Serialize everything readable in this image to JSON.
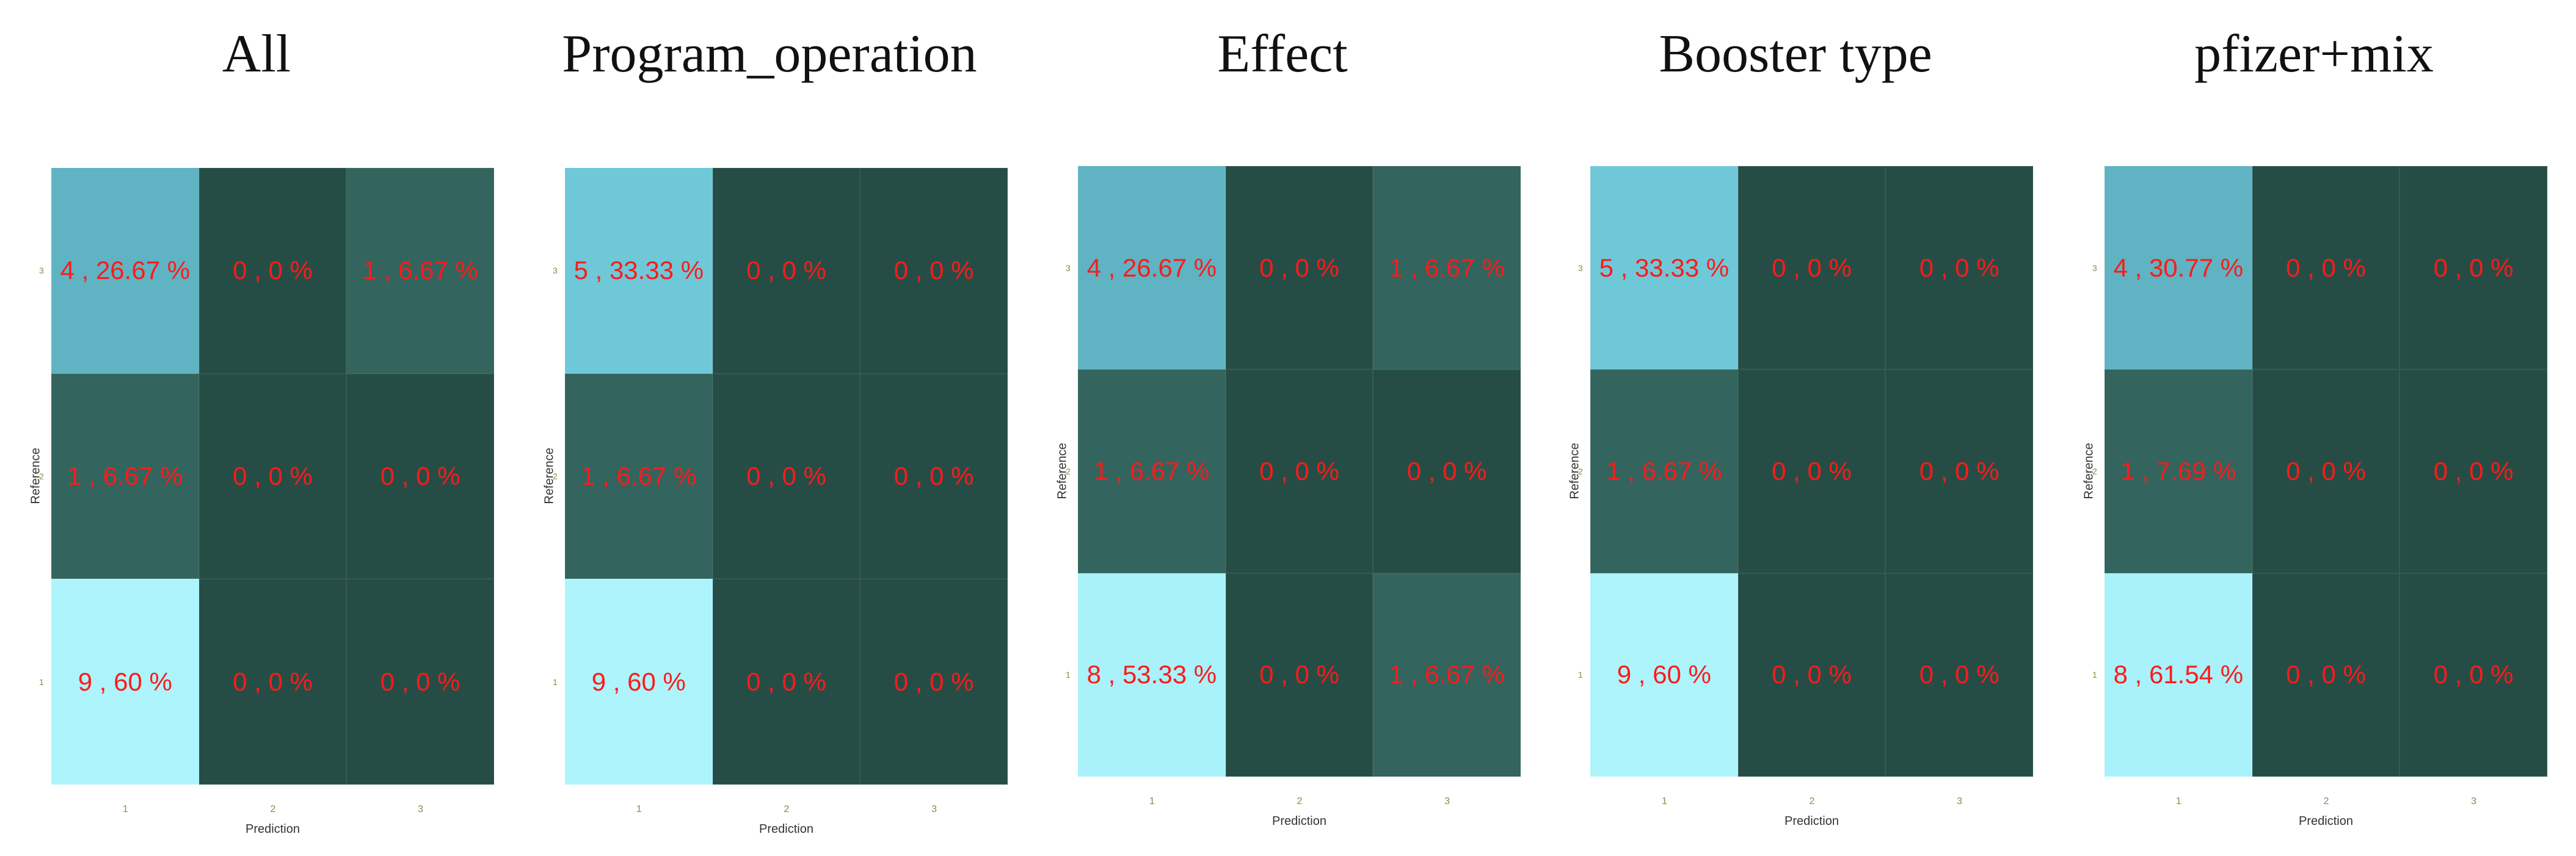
{
  "figure": {
    "type": "confusion-matrix-panels"
  },
  "colors": {
    "title_text": "#111111",
    "cell_label_text": "#ff1a1a",
    "palette": {
      "0": "#264d45",
      "1": "#33645d",
      "4_low": "#64b9c8",
      "4": "#5fb3c2",
      "5": "#6fc8d8",
      "8": "#a9f2fb",
      "9": "#adf4fc"
    }
  },
  "axis_text": {
    "xlabel": "Prediction",
    "ylabel": "Reference",
    "x_ticks": [
      "1",
      "2",
      "3"
    ],
    "y_ticks_top_to_bottom": [
      "3",
      "2",
      "1"
    ]
  },
  "chart_data": [
    {
      "type": "heatmap",
      "title": "All",
      "xlabel": "Prediction",
      "ylabel": "Reference",
      "x_categories": [
        "1",
        "2",
        "3"
      ],
      "y_categories": [
        "3",
        "2",
        "1"
      ],
      "counts": [
        [
          4,
          0,
          1
        ],
        [
          1,
          0,
          0
        ],
        [
          9,
          0,
          0
        ]
      ],
      "labels": [
        [
          "4 , 26.67 %",
          "0 , 0 %",
          "1 , 6.67 %"
        ],
        [
          "1 , 6.67 %",
          "0 , 0 %",
          "0 , 0 %"
        ],
        [
          "9 , 60 %",
          "0 , 0 %",
          "0 , 0 %"
        ]
      ]
    },
    {
      "type": "heatmap",
      "title": "Program_operation",
      "xlabel": "Prediction",
      "ylabel": "Reference",
      "x_categories": [
        "1",
        "2",
        "3"
      ],
      "y_categories": [
        "3",
        "2",
        "1"
      ],
      "counts": [
        [
          5,
          0,
          0
        ],
        [
          1,
          0,
          0
        ],
        [
          9,
          0,
          0
        ]
      ],
      "labels": [
        [
          "5 , 33.33 %",
          "0 , 0 %",
          "0 , 0 %"
        ],
        [
          "1 , 6.67 %",
          "0 , 0 %",
          "0 , 0 %"
        ],
        [
          "9 , 60 %",
          "0 , 0 %",
          "0 , 0 %"
        ]
      ]
    },
    {
      "type": "heatmap",
      "title": "Effect",
      "xlabel": "Prediction",
      "ylabel": "Reference",
      "x_categories": [
        "1",
        "2",
        "3"
      ],
      "y_categories": [
        "3",
        "2",
        "1"
      ],
      "counts": [
        [
          4,
          0,
          1
        ],
        [
          1,
          0,
          0
        ],
        [
          8,
          0,
          1
        ]
      ],
      "labels": [
        [
          "4 , 26.67 %",
          "0 , 0 %",
          "1 , 6.67 %"
        ],
        [
          "1 , 6.67 %",
          "0 , 0 %",
          "0 , 0 %"
        ],
        [
          "8 , 53.33 %",
          "0 , 0 %",
          "1 , 6.67 %"
        ]
      ]
    },
    {
      "type": "heatmap",
      "title": "Booster type",
      "xlabel": "Prediction",
      "ylabel": "Reference",
      "x_categories": [
        "1",
        "2",
        "3"
      ],
      "y_categories": [
        "3",
        "2",
        "1"
      ],
      "counts": [
        [
          5,
          0,
          0
        ],
        [
          1,
          0,
          0
        ],
        [
          9,
          0,
          0
        ]
      ],
      "labels": [
        [
          "5 , 33.33 %",
          "0 , 0 %",
          "0 , 0 %"
        ],
        [
          "1 , 6.67 %",
          "0 , 0 %",
          "0 , 0 %"
        ],
        [
          "9 , 60 %",
          "0 , 0 %",
          "0 , 0 %"
        ]
      ]
    },
    {
      "type": "heatmap",
      "title": "pfizer+mix",
      "xlabel": "Prediction",
      "ylabel": "Reference",
      "x_categories": [
        "1",
        "2",
        "3"
      ],
      "y_categories": [
        "3",
        "2",
        "1"
      ],
      "counts": [
        [
          4,
          0,
          0
        ],
        [
          1,
          0,
          0
        ],
        [
          8,
          0,
          0
        ]
      ],
      "labels": [
        [
          "4 , 30.77 %",
          "0 , 0 %",
          "0 , 0 %"
        ],
        [
          "1 , 7.69 %",
          "0 , 0 %",
          "0 , 0 %"
        ],
        [
          "8 , 61.54 %",
          "0 , 0 %",
          "0 , 0 %"
        ]
      ]
    }
  ]
}
